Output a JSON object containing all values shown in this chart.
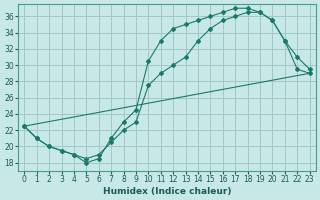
{
  "xlabel": "Humidex (Indice chaleur)",
  "bg_color": "#c8e8e8",
  "grid_color": "#a0c8c8",
  "line_color": "#1a7a6a",
  "xlim": [
    -0.5,
    23.5
  ],
  "ylim": [
    17,
    37.5
  ],
  "xticks": [
    0,
    1,
    2,
    3,
    4,
    5,
    6,
    7,
    8,
    9,
    10,
    11,
    12,
    13,
    14,
    15,
    16,
    17,
    18,
    19,
    20,
    21,
    22,
    23
  ],
  "yticks": [
    18,
    20,
    22,
    24,
    26,
    28,
    30,
    32,
    34,
    36
  ],
  "line1_x": [
    0,
    1,
    2,
    3,
    4,
    5,
    6,
    7,
    8,
    9,
    10,
    11,
    12,
    13,
    14,
    15,
    16,
    17,
    18,
    19,
    20,
    21,
    22,
    23
  ],
  "line1_y": [
    22.5,
    21.0,
    20.0,
    19.5,
    19.0,
    18.0,
    18.5,
    21.0,
    23.0,
    24.5,
    30.5,
    33.0,
    34.5,
    35.0,
    35.5,
    36.0,
    36.5,
    37.0,
    37.0,
    36.5,
    35.5,
    33.0,
    31.0,
    29.5
  ],
  "line2_x": [
    0,
    1,
    2,
    3,
    4,
    5,
    6,
    7,
    8,
    9,
    10,
    11,
    12,
    13,
    14,
    15,
    16,
    17,
    18,
    19,
    20,
    21,
    22,
    23
  ],
  "line2_y": [
    22.5,
    21.0,
    20.0,
    19.5,
    19.0,
    18.5,
    19.0,
    20.5,
    22.0,
    23.0,
    27.5,
    29.0,
    30.0,
    31.0,
    33.0,
    34.5,
    35.5,
    36.0,
    36.5,
    36.5,
    35.5,
    33.0,
    29.5,
    29.0
  ],
  "line3_x": [
    0,
    23
  ],
  "line3_y": [
    22.5,
    29.0
  ]
}
